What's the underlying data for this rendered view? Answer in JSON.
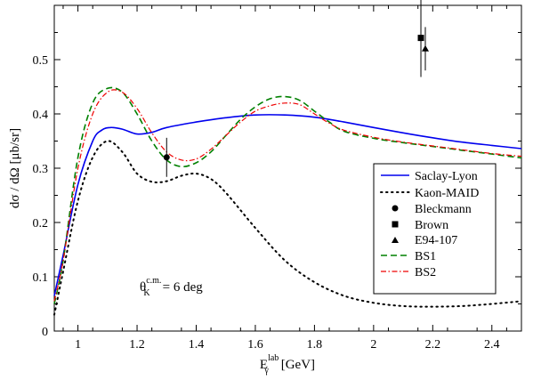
{
  "chart_data": {
    "type": "line",
    "title": "",
    "xlabel_main": "E",
    "xlabel_sub": "γ",
    "xlabel_sup": "lab",
    "xlabel_unit": "[GeV]",
    "ylabel": "dσ / dΩ  [μb/sr]",
    "xlim": [
      0.92,
      2.5
    ],
    "ylim": [
      0,
      0.6
    ],
    "x_ticks": [
      "1",
      "1.2",
      "1.4",
      "1.6",
      "1.8",
      "2",
      "2.2",
      "2.4"
    ],
    "x_tick_values": [
      1.0,
      1.2,
      1.4,
      1.6,
      1.8,
      2.0,
      2.2,
      2.4
    ],
    "y_ticks": [
      "0",
      "0.1",
      "0.2",
      "0.3",
      "0.4",
      "0.5"
    ],
    "y_tick_values": [
      0,
      0.1,
      0.2,
      0.3,
      0.4,
      0.5
    ],
    "grid": false,
    "legend_position": "right",
    "annotation": {
      "symbol": "θ",
      "sub": "K",
      "sup": "c.m.",
      "text": "= 6 deg"
    },
    "series": [
      {
        "name": "Saclay-Lyon",
        "style": "solid",
        "color": "#0000ee",
        "x": [
          0.92,
          0.95,
          1.0,
          1.05,
          1.08,
          1.11,
          1.15,
          1.2,
          1.25,
          1.3,
          1.4,
          1.5,
          1.6,
          1.7,
          1.8,
          1.9,
          2.0,
          2.1,
          2.2,
          2.3,
          2.4,
          2.5
        ],
        "y": [
          0.065,
          0.14,
          0.27,
          0.35,
          0.37,
          0.375,
          0.372,
          0.363,
          0.366,
          0.375,
          0.385,
          0.393,
          0.398,
          0.398,
          0.394,
          0.385,
          0.375,
          0.365,
          0.356,
          0.348,
          0.342,
          0.336
        ]
      },
      {
        "name": "Kaon-MAID",
        "style": "dotted",
        "color": "#000000",
        "x": [
          0.92,
          0.95,
          1.0,
          1.05,
          1.1,
          1.15,
          1.2,
          1.25,
          1.3,
          1.35,
          1.4,
          1.45,
          1.5,
          1.6,
          1.7,
          1.8,
          1.9,
          2.0,
          2.1,
          2.2,
          2.3,
          2.4,
          2.5
        ],
        "y": [
          0.03,
          0.11,
          0.24,
          0.32,
          0.35,
          0.33,
          0.29,
          0.275,
          0.276,
          0.286,
          0.29,
          0.28,
          0.255,
          0.19,
          0.13,
          0.09,
          0.065,
          0.052,
          0.046,
          0.045,
          0.046,
          0.05,
          0.055
        ]
      },
      {
        "name": "BS1",
        "style": "dashed",
        "color": "#008000",
        "x": [
          0.92,
          0.95,
          1.0,
          1.05,
          1.1,
          1.15,
          1.2,
          1.25,
          1.3,
          1.35,
          1.4,
          1.45,
          1.5,
          1.55,
          1.6,
          1.65,
          1.7,
          1.75,
          1.8,
          1.85,
          1.9,
          2.0,
          2.1,
          2.2,
          2.3,
          2.4,
          2.5
        ],
        "y": [
          0.05,
          0.13,
          0.32,
          0.42,
          0.447,
          0.44,
          0.4,
          0.35,
          0.315,
          0.303,
          0.31,
          0.33,
          0.36,
          0.39,
          0.413,
          0.428,
          0.432,
          0.425,
          0.405,
          0.385,
          0.368,
          0.355,
          0.347,
          0.34,
          0.333,
          0.326,
          0.319
        ]
      },
      {
        "name": "BS2",
        "style": "dashdot",
        "color": "#ee0000",
        "x": [
          0.92,
          0.95,
          1.0,
          1.05,
          1.1,
          1.15,
          1.2,
          1.25,
          1.3,
          1.35,
          1.4,
          1.45,
          1.5,
          1.55,
          1.6,
          1.65,
          1.7,
          1.75,
          1.8,
          1.85,
          1.9,
          2.0,
          2.1,
          2.2,
          2.3,
          2.4,
          2.5
        ],
        "y": [
          0.055,
          0.13,
          0.3,
          0.4,
          0.44,
          0.44,
          0.41,
          0.365,
          0.33,
          0.315,
          0.317,
          0.335,
          0.36,
          0.385,
          0.405,
          0.415,
          0.42,
          0.417,
          0.4,
          0.383,
          0.37,
          0.357,
          0.348,
          0.341,
          0.334,
          0.327,
          0.322
        ]
      }
    ],
    "points": [
      {
        "name": "Bleckmann",
        "marker": "circle",
        "x": 1.3,
        "y": 0.32,
        "err": 0.036
      },
      {
        "name": "Brown",
        "marker": "square",
        "x": 2.16,
        "y": 0.54,
        "err": 0.072
      },
      {
        "name": "E94-107",
        "marker": "triangle",
        "x": 2.175,
        "y": 0.52,
        "err": 0.04
      }
    ]
  }
}
